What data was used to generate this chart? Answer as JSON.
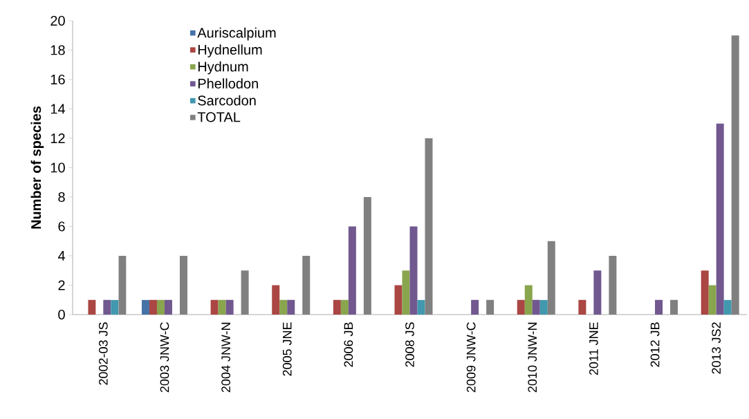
{
  "chart_data": {
    "type": "bar",
    "ylabel": "Number of species",
    "categories": [
      "2002-03 JS",
      "2003 JNW-C",
      "2004 JNW-N",
      "2005 JNE",
      "2006 JB",
      "2008 JS",
      "2009 JNW-C",
      "2010 JNW-N",
      "2011 JNE",
      "2012 JB",
      "2013 JS2"
    ],
    "series": [
      {
        "name": "Auriscalpium",
        "color": "#4572a7",
        "values": [
          0,
          1,
          0,
          0,
          0,
          0,
          0,
          0,
          0,
          0,
          0
        ]
      },
      {
        "name": "Hydnellum",
        "color": "#aa4643",
        "values": [
          1,
          1,
          1,
          2,
          1,
          2,
          0,
          1,
          1,
          0,
          3
        ]
      },
      {
        "name": "Hydnum",
        "color": "#89a54e",
        "values": [
          0,
          1,
          1,
          1,
          1,
          3,
          0,
          2,
          0,
          0,
          2
        ]
      },
      {
        "name": "Phellodon",
        "color": "#71588f",
        "values": [
          1,
          1,
          1,
          1,
          6,
          6,
          1,
          1,
          3,
          1,
          13
        ]
      },
      {
        "name": "Sarcodon",
        "color": "#4198af",
        "values": [
          1,
          0,
          0,
          0,
          0,
          1,
          0,
          1,
          0,
          0,
          1
        ]
      },
      {
        "name": "TOTAL",
        "color": "#808080",
        "values": [
          4,
          4,
          3,
          4,
          8,
          12,
          1,
          5,
          4,
          1,
          19
        ]
      }
    ],
    "ylim": [
      0,
      20
    ],
    "yticks": [
      0,
      2,
      4,
      6,
      8,
      10,
      12,
      14,
      16,
      18,
      20
    ],
    "legend": "top left"
  }
}
